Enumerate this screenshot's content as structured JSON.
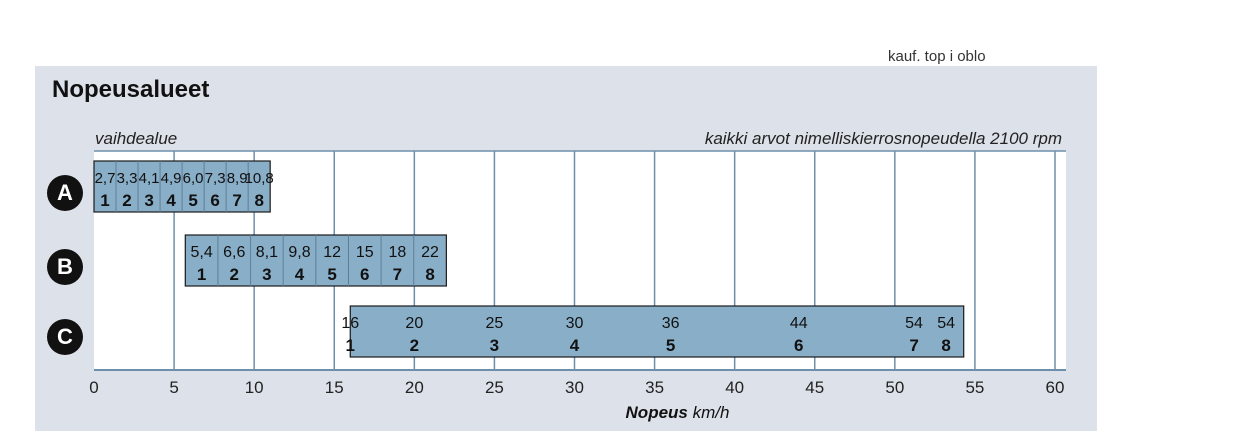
{
  "top_clip_text": "kauf. top     i oblo",
  "chart_data": {
    "type": "bar",
    "title": "Nopeusalueet",
    "range_label": "vaihdealue",
    "note": "kaikki arvot nimelliskierrosnopeudella 2100 rpm",
    "xlabel": "Nopeus",
    "xunit": "km/h",
    "xlim": [
      0,
      60
    ],
    "xticks": [
      0,
      5,
      10,
      15,
      20,
      25,
      30,
      35,
      40,
      45,
      50,
      55,
      60
    ],
    "grid": true,
    "series": [
      {
        "name": "A",
        "gears": [
          "1",
          "2",
          "3",
          "4",
          "5",
          "6",
          "7",
          "8"
        ],
        "speeds": [
          2.7,
          3.3,
          4.1,
          4.9,
          6.0,
          7.3,
          8.9,
          10.8
        ],
        "speed_labels": [
          "2,7",
          "3,3",
          "4,1",
          "4,9",
          "6,0",
          "7,3",
          "8,9",
          "10,8"
        ],
        "range": [
          0,
          11
        ]
      },
      {
        "name": "B",
        "gears": [
          "1",
          "2",
          "3",
          "4",
          "5",
          "6",
          "7",
          "8"
        ],
        "speeds": [
          5.4,
          6.6,
          8.1,
          9.8,
          12,
          15,
          18,
          22
        ],
        "speed_labels": [
          "5,4",
          "6,6",
          "8,1",
          "9,8",
          "12",
          "15",
          "18",
          "22"
        ],
        "range": [
          5.7,
          22
        ]
      },
      {
        "name": "C",
        "gears": [
          "1",
          "2",
          "3",
          "4",
          "5",
          "6",
          "7",
          "8"
        ],
        "speeds": [
          16,
          20,
          25,
          30,
          36,
          44,
          54,
          54
        ],
        "speed_labels": [
          "16",
          "20",
          "25",
          "30",
          "36",
          "44",
          "54",
          "54"
        ],
        "range": [
          16,
          54.3
        ]
      }
    ],
    "colors": {
      "bar": "#89aec8",
      "bar_border": "#1a1a1a",
      "grid": "#6e8fab",
      "panel": "#dde2ea",
      "plot": "#ffffff"
    }
  }
}
